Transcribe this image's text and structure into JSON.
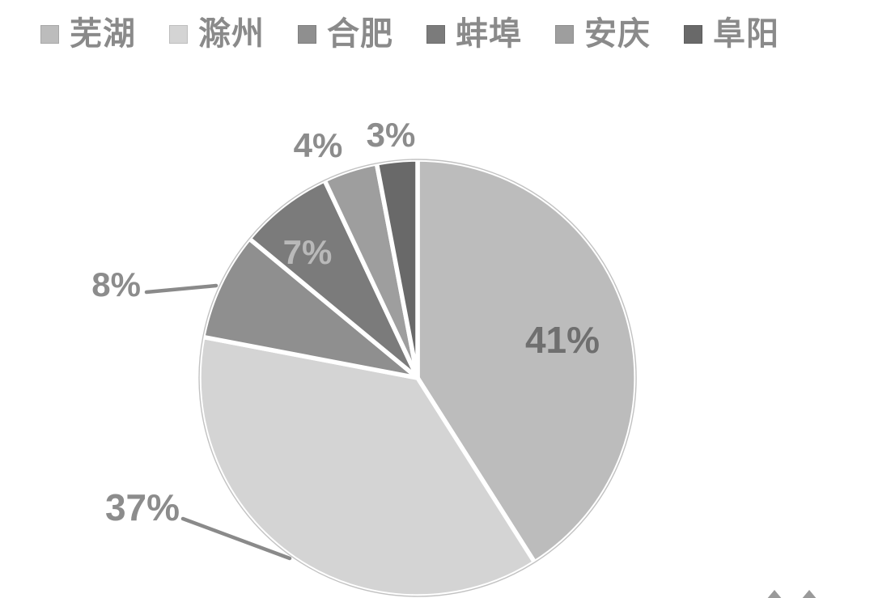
{
  "legend": {
    "position": "top",
    "text_color": "#8a8a8a"
  },
  "chart_data": {
    "type": "pie",
    "title": "",
    "start_angle_deg": 0,
    "direction": "clockwise",
    "legend_position": "top",
    "background_color": "#ffffff",
    "separator_color": "#ffffff",
    "categories": [
      "芜湖",
      "滁州",
      "合肥",
      "蚌埠",
      "安庆",
      "阜阳"
    ],
    "values": [
      41,
      37,
      8,
      7,
      4,
      3
    ],
    "series": [
      {
        "name": "芜湖",
        "value": 41,
        "percent_label": "41%",
        "color": "#bcbcbc",
        "label_color": "#6f6f6f",
        "label_placement": "inside"
      },
      {
        "name": "滁州",
        "value": 37,
        "percent_label": "37%",
        "color": "#d4d4d4",
        "label_color": "#8c8c8c",
        "label_placement": "outside-leader"
      },
      {
        "name": "合肥",
        "value": 8,
        "percent_label": "8%",
        "color": "#8f8f8f",
        "label_color": "#8c8c8c",
        "label_placement": "outside-leader"
      },
      {
        "name": "蚌埠",
        "value": 7,
        "percent_label": "7%",
        "color": "#7b7b7b",
        "label_color": "#b9b9b9",
        "label_placement": "inside"
      },
      {
        "name": "安庆",
        "value": 4,
        "percent_label": "4%",
        "color": "#9e9e9e",
        "label_color": "#8c8c8c",
        "label_placement": "outside"
      },
      {
        "name": "阜阳",
        "value": 3,
        "percent_label": "3%",
        "color": "#696969",
        "label_color": "#8c8c8c",
        "label_placement": "outside"
      }
    ]
  }
}
